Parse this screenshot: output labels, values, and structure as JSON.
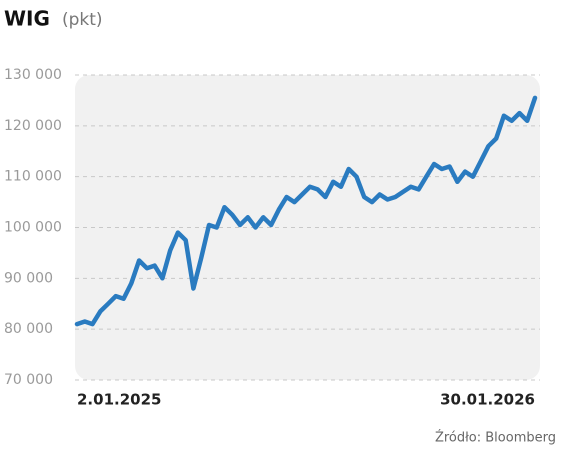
{
  "chart_data": {
    "type": "line",
    "title": "WIG",
    "y_label": "(pkt)",
    "source": "Źródło: Bloomberg",
    "categories": [
      "2.01.2025",
      null,
      null,
      null,
      null,
      null,
      null,
      null,
      null,
      null,
      null,
      null,
      null,
      null,
      null,
      null,
      null,
      null,
      null,
      null,
      null,
      null,
      null,
      null,
      null,
      null,
      null,
      null,
      null,
      null,
      null,
      null,
      null,
      null,
      null,
      null,
      null,
      null,
      null,
      null,
      null,
      null,
      null,
      null,
      null,
      null,
      null,
      null,
      null,
      null,
      null,
      null,
      null,
      null,
      null,
      null,
      null,
      null,
      null,
      "30.01.2026"
    ],
    "values": [
      81000,
      81500,
      81000,
      83500,
      85000,
      86500,
      86000,
      89000,
      93500,
      92000,
      92500,
      90000,
      95500,
      99000,
      97500,
      88000,
      94000,
      100500,
      100000,
      104000,
      102500,
      100500,
      102000,
      100000,
      102000,
      100500,
      103500,
      106000,
      105000,
      106500,
      108000,
      107500,
      106000,
      109000,
      108000,
      111500,
      110000,
      106000,
      105000,
      106500,
      105500,
      106000,
      107000,
      108000,
      107500,
      110000,
      112500,
      111500,
      112000,
      109000,
      111000,
      110000,
      113000,
      116000,
      117500,
      122000,
      121000,
      122500,
      121000,
      125500
    ],
    "color": "#2a7bc0",
    "ylim": [
      70000,
      130000
    ],
    "yticks": [
      {
        "value": 70000,
        "label": "70 000"
      },
      {
        "value": 80000,
        "label": "80 000"
      },
      {
        "value": 90000,
        "label": "90 000"
      },
      {
        "value": 100000,
        "label": "100 000"
      },
      {
        "value": 110000,
        "label": "110 000"
      },
      {
        "value": 120000,
        "label": "120 000"
      },
      {
        "value": 130000,
        "label": "130 000"
      }
    ],
    "grid": true
  }
}
